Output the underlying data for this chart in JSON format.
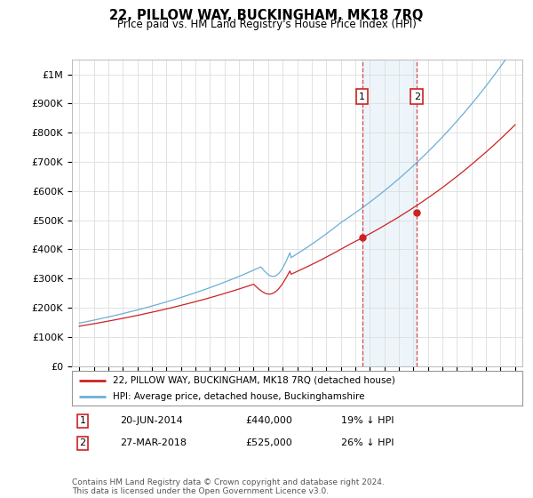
{
  "title": "22, PILLOW WAY, BUCKINGHAM, MK18 7RQ",
  "subtitle": "Price paid vs. HM Land Registry's House Price Index (HPI)",
  "ylim": [
    0,
    1050000
  ],
  "yticks": [
    0,
    100000,
    200000,
    300000,
    400000,
    500000,
    600000,
    700000,
    800000,
    900000,
    1000000
  ],
  "ytick_labels": [
    "£0",
    "£100K",
    "£200K",
    "£300K",
    "£400K",
    "£500K",
    "£600K",
    "£700K",
    "£800K",
    "£900K",
    "£1M"
  ],
  "hpi_color": "#6baed6",
  "price_color": "#cc2222",
  "sale1_date_num": 2014.47,
  "sale1_price": 440000,
  "sale2_date_num": 2018.24,
  "sale2_price": 525000,
  "legend_line1": "22, PILLOW WAY, BUCKINGHAM, MK18 7RQ (detached house)",
  "legend_line2": "HPI: Average price, detached house, Buckinghamshire",
  "table_row1": [
    "1",
    "20-JUN-2014",
    "£440,000",
    "19% ↓ HPI"
  ],
  "table_row2": [
    "2",
    "27-MAR-2018",
    "£525,000",
    "26% ↓ HPI"
  ],
  "footer": "Contains HM Land Registry data © Crown copyright and database right 2024.\nThis data is licensed under the Open Government Licence v3.0.",
  "background_color": "#ffffff",
  "grid_color": "#dddddd"
}
